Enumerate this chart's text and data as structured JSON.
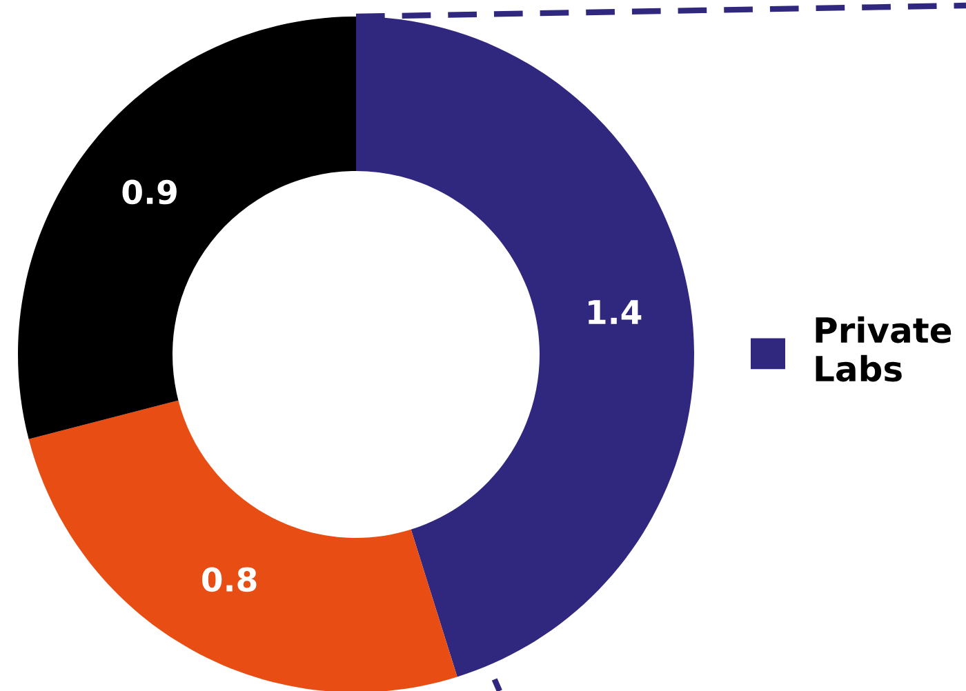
{
  "chart_data": {
    "type": "donut",
    "categories": [
      "Private Labs",
      null,
      null
    ],
    "values": [
      1.4,
      0.8,
      0.9
    ],
    "colors": [
      "#30287e",
      "#e84e14",
      "#000000"
    ],
    "data_labels": true,
    "legend": "right"
  }
}
